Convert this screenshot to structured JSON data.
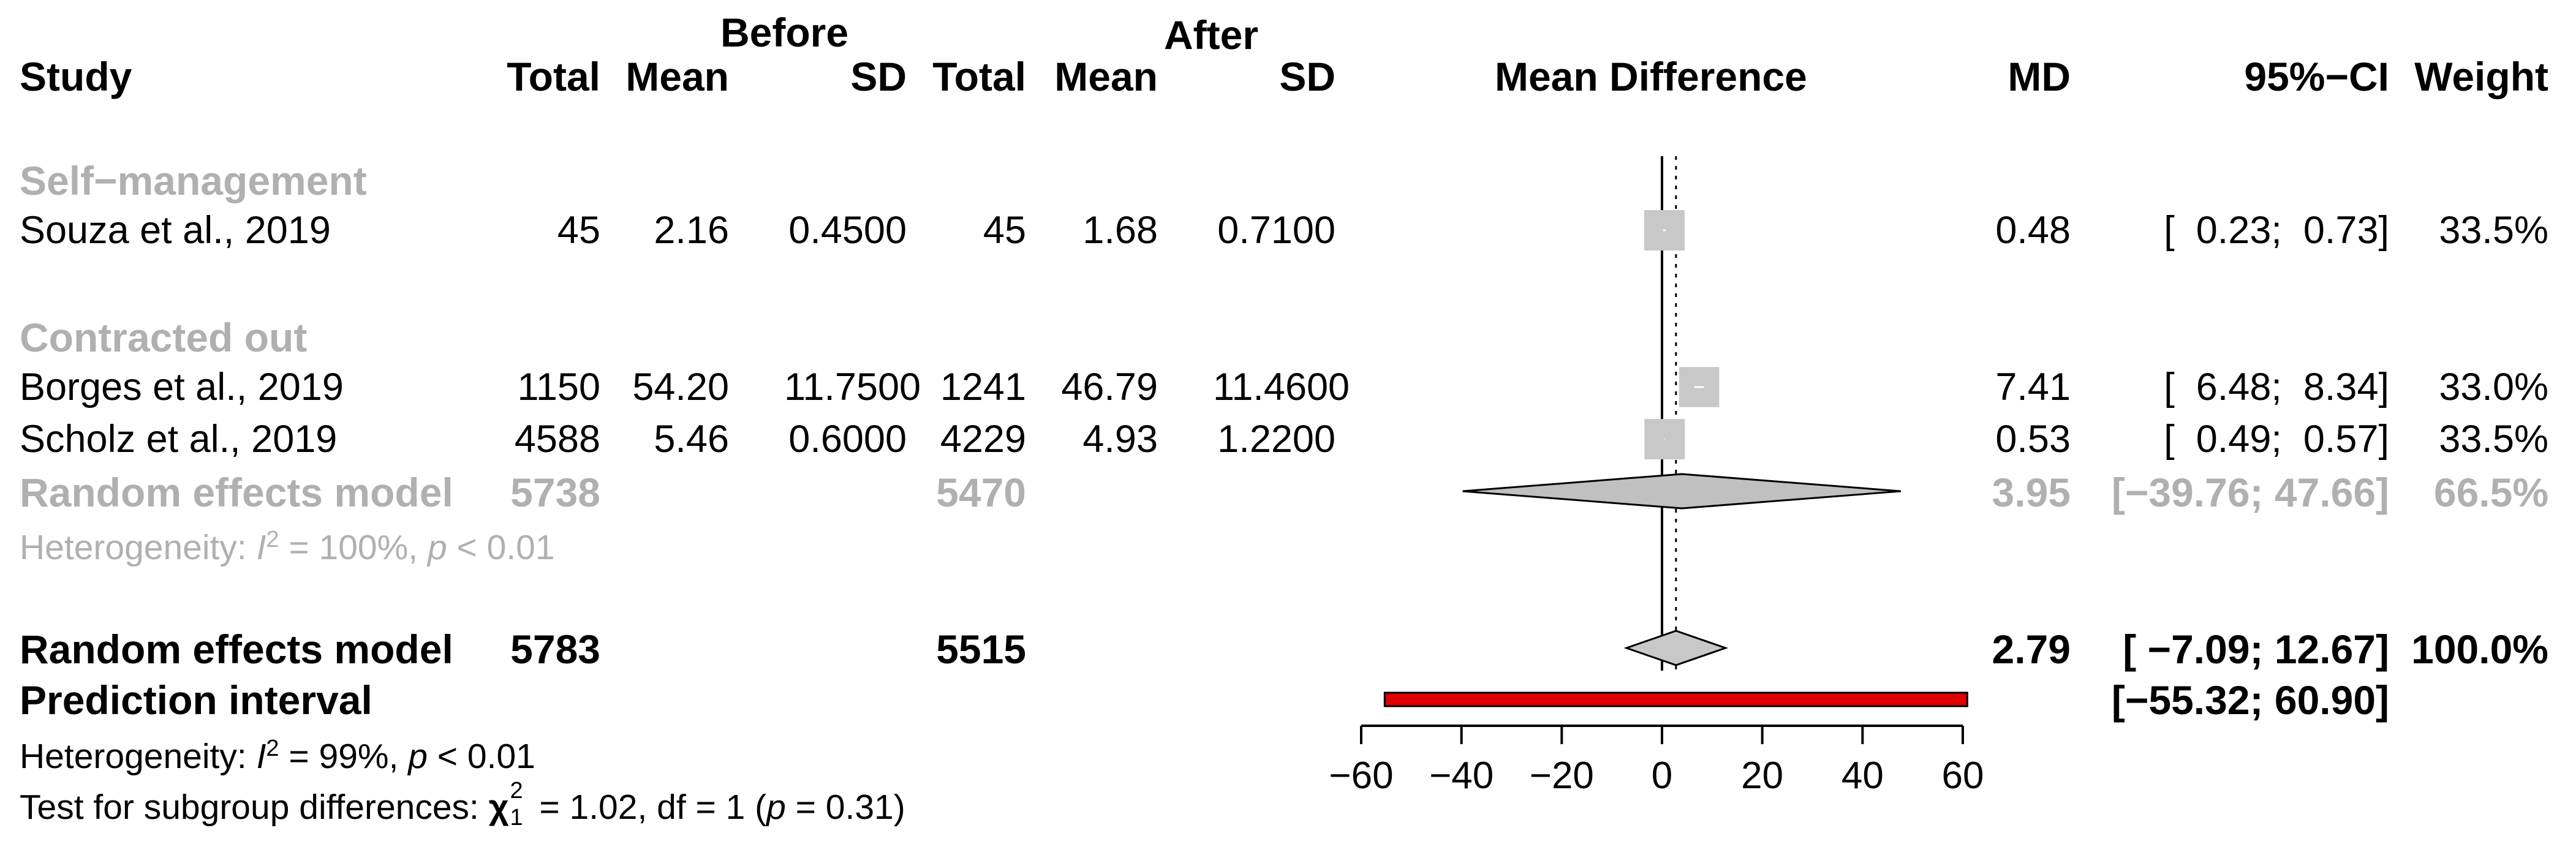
{
  "header": {
    "before": "Before",
    "after": "After",
    "study": "Study",
    "total_before": "Total",
    "mean_before": "Mean",
    "sd_before": "SD",
    "total_after": "Total",
    "mean_after": "Mean",
    "sd_after": "SD",
    "mean_difference": "Mean Difference",
    "md": "MD",
    "ci": "95%−CI",
    "weight": "Weight"
  },
  "subgroups": [
    {
      "label": "Self−management"
    },
    {
      "label": "Contracted out"
    }
  ],
  "rows": [
    {
      "study": "Souza et al., 2019",
      "total_before": "45",
      "mean_before": "2.16",
      "sd_before": "0.4500",
      "total_after": "45",
      "mean_after": "1.68",
      "sd_after": "0.7100",
      "md": "0.48",
      "ci": "[  0.23;  0.73]",
      "weight": "33.5%"
    },
    {
      "study": "Borges et al., 2019",
      "total_before": "1150",
      "mean_before": "54.20",
      "sd_before": "11.7500",
      "total_after": "1241",
      "mean_after": "46.79",
      "sd_after": "11.4600",
      "md": "7.41",
      "ci": "[  6.48;  8.34]",
      "weight": "33.0%"
    },
    {
      "study": "Scholz et al., 2019",
      "total_before": "4588",
      "mean_before": "5.46",
      "sd_before": "0.6000",
      "total_after": "4229",
      "mean_after": "4.93",
      "sd_after": "1.2200",
      "md": "0.53",
      "ci": "[  0.49;  0.57]",
      "weight": "33.5%"
    }
  ],
  "subgroup_model": {
    "label": "Random effects model",
    "total_before": "5738",
    "total_after": "5470",
    "md": "3.95",
    "ci": "[−39.76; 47.66]",
    "weight": "66.5%",
    "heterogeneity_prefix": "Heterogeneity: ",
    "heterogeneity_i": "I",
    "heterogeneity_sup": "2",
    "heterogeneity_mid": " = 100%, ",
    "heterogeneity_p": "p",
    "heterogeneity_tail": " < 0.01"
  },
  "overall_model": {
    "label": "Random effects model",
    "total_before": "5783",
    "total_after": "5515",
    "md": "2.79",
    "ci": "[ −7.09; 12.67]",
    "weight": "100.0%"
  },
  "prediction": {
    "label": "Prediction interval",
    "ci": "[−55.32; 60.90]"
  },
  "footer": {
    "het_prefix": "Heterogeneity: ",
    "het_i": "I",
    "het_sup": "2",
    "het_mid": " = 99%, ",
    "het_p": "p",
    "het_tail": " < 0.01",
    "test_prefix": "Test for subgroup differences: ",
    "chi": "χ",
    "chi_sup": "2",
    "chi_sub": "1",
    "test_mid": " = 1.02, df = 1 (",
    "test_p": "p",
    "test_tail": " = 0.31)"
  },
  "chart_data": {
    "type": "forest",
    "title": "Mean Difference",
    "xlabel": "",
    "xlim": [
      -60,
      60
    ],
    "x_ticks": [
      -60,
      -40,
      -20,
      0,
      20,
      40,
      60
    ],
    "x_tick_labels": [
      "−60",
      "−40",
      "−20",
      "0",
      "20",
      "40",
      "60"
    ],
    "reference_line": 0,
    "overall_effect_line": 2.79,
    "studies": [
      {
        "name": "Souza et al., 2019",
        "md": 0.48,
        "ci_low": 0.23,
        "ci_high": 0.73,
        "weight": 33.5
      },
      {
        "name": "Borges et al., 2019",
        "md": 7.41,
        "ci_low": 6.48,
        "ci_high": 8.34,
        "weight": 33.0
      },
      {
        "name": "Scholz et al., 2019",
        "md": 0.53,
        "ci_low": 0.49,
        "ci_high": 0.57,
        "weight": 33.5
      }
    ],
    "subgroup_summary": {
      "name": "Contracted out",
      "md": 3.95,
      "ci_low": -39.76,
      "ci_high": 47.66
    },
    "overall_summary": {
      "md": 2.79,
      "ci_low": -7.09,
      "ci_high": 12.67
    },
    "prediction_interval": {
      "low": -55.32,
      "high": 60.9
    },
    "colors": {
      "square": "#c8c8c8",
      "diamond_subgroup": "#c0c0c0",
      "diamond_overall": "#c8c8c8",
      "prediction": "#e00000",
      "axis": "#000000"
    }
  }
}
